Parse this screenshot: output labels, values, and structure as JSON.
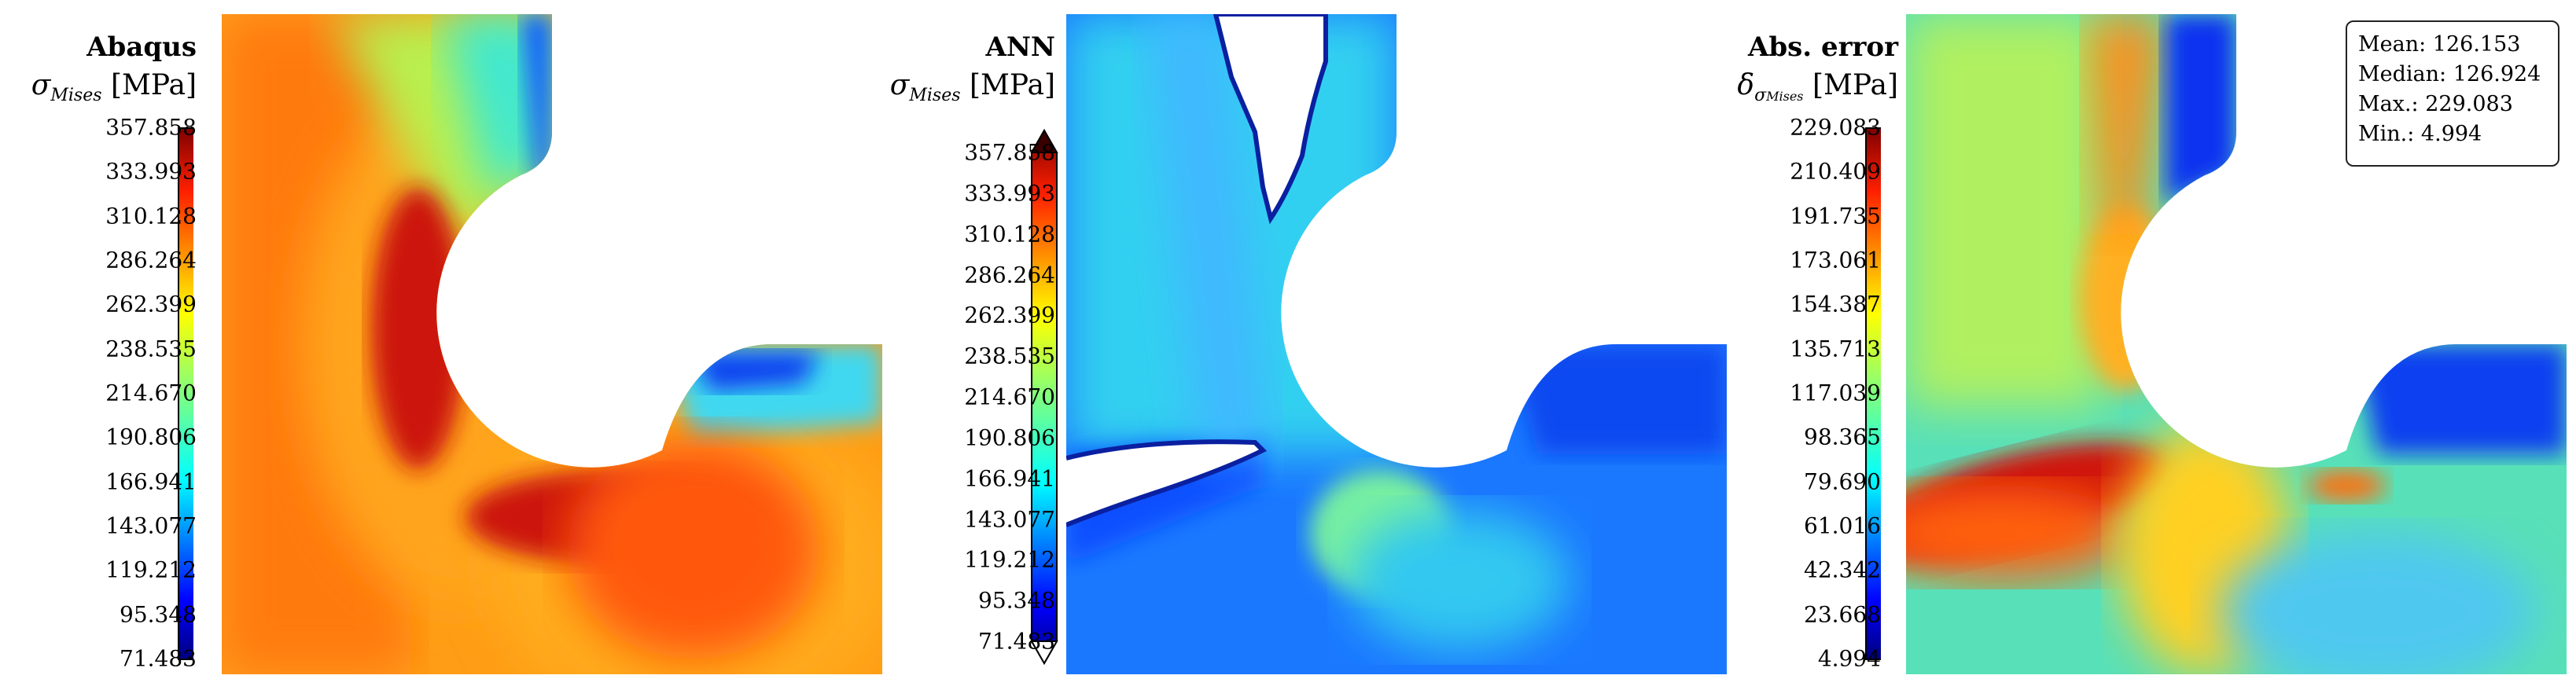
{
  "panels": [
    {
      "id": "abaqus",
      "title": "Abaqus",
      "quantity_symbol": "σ",
      "quantity_subscript": "Mises",
      "unit": "[MPa]",
      "colorbar_ticks": [
        "357.858",
        "333.993",
        "310.128",
        "286.264",
        "262.399",
        "238.535",
        "214.670",
        "190.806",
        "166.941",
        "143.077",
        "119.212",
        "95.348",
        "71.483"
      ],
      "colorbar_min": 71.483,
      "colorbar_max": 357.858,
      "colormap": "jet"
    },
    {
      "id": "ann",
      "title": "ANN",
      "quantity_symbol": "σ",
      "quantity_subscript": "Mises",
      "unit": "[MPa]",
      "colorbar_ticks": [
        "357.858",
        "333.993",
        "310.128",
        "286.264",
        "262.399",
        "238.535",
        "214.670",
        "190.806",
        "166.941",
        "143.077",
        "119.212",
        "95.348",
        "71.483"
      ],
      "colorbar_min": 71.483,
      "colorbar_max": 357.858,
      "colormap": "jet",
      "colorbar_extend": "both"
    },
    {
      "id": "abs-error",
      "title": "Abs. error",
      "quantity_symbol": "δ",
      "quantity_sub_symbol": "σ",
      "quantity_subscript": "Mises",
      "unit": "[MPa]",
      "colorbar_ticks": [
        "229.083",
        "210.409",
        "191.735",
        "173.061",
        "154.387",
        "135.713",
        "117.039",
        "98.365",
        "79.690",
        "61.016",
        "42.342",
        "23.668",
        "4.994"
      ],
      "colorbar_min": 4.994,
      "colorbar_max": 229.083,
      "colormap": "jet"
    }
  ],
  "stats": {
    "mean": "Mean: 126.153",
    "median": "Median: 126.924",
    "max": "Max.: 229.083",
    "min": "Min.: 4.994"
  },
  "colors": {
    "jet_stops": [
      "#00007f",
      "#0000ff",
      "#007fff",
      "#00ffff",
      "#7fff7f",
      "#ffff00",
      "#ff7f00",
      "#ff0000",
      "#7f0000"
    ]
  },
  "chart_data": [
    {
      "type": "heatmap",
      "title": "Abaqus",
      "value_range": [
        71.483,
        357.858
      ],
      "unit": "MPa"
    },
    {
      "type": "heatmap",
      "title": "ANN",
      "value_range": [
        71.483,
        357.858
      ],
      "unit": "MPa"
    },
    {
      "type": "heatmap",
      "title": "Abs. error",
      "value_range": [
        4.994,
        229.083
      ],
      "unit": "MPa"
    }
  ]
}
